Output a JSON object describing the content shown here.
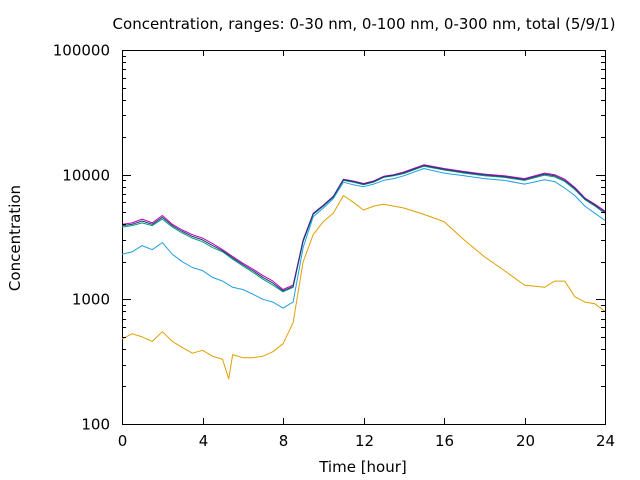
{
  "chart_data": {
    "type": "line",
    "title": "Concentration, ranges: 0-30 nm, 0-100 nm, 0-300 nm, total (5/9/1)",
    "xlabel": "Time [hour]",
    "ylabel": "Concentration",
    "xlim": [
      0,
      24
    ],
    "ylim": [
      100,
      100000
    ],
    "yscale": "log",
    "grid": false,
    "legend": "none",
    "x_ticks": [
      0,
      4,
      8,
      12,
      16,
      20,
      24
    ],
    "y_ticks": [
      100,
      1000,
      10000,
      100000
    ],
    "x_tick_labels": [
      "0",
      "4",
      "8",
      "12",
      "16",
      "20",
      "24"
    ],
    "y_tick_labels": [
      "100",
      "1000",
      "10000",
      "100000"
    ],
    "series": [
      {
        "color": "#e0a000",
        "x": [
          0,
          0.5,
          1,
          1.5,
          2,
          2.5,
          3,
          3.5,
          4,
          4.5,
          5,
          5.3,
          5.5,
          6,
          6.5,
          7,
          7.5,
          8,
          8.5,
          9,
          9.5,
          10,
          10.5,
          11,
          11.5,
          12,
          12.5,
          13,
          13.5,
          14,
          15,
          16,
          17,
          18,
          19,
          20,
          21,
          21.5,
          22,
          22.5,
          23,
          23.5,
          24
        ],
        "y": [
          480,
          530,
          500,
          460,
          550,
          460,
          410,
          370,
          390,
          350,
          330,
          230,
          360,
          340,
          340,
          350,
          380,
          440,
          650,
          2000,
          3300,
          4200,
          4900,
          6800,
          6000,
          5200,
          5600,
          5800,
          5600,
          5400,
          4800,
          4200,
          3000,
          2200,
          1700,
          1300,
          1250,
          1400,
          1400,
          1050,
          950,
          920,
          800
        ]
      },
      {
        "color": "#20a0e0",
        "x": [
          0,
          0.5,
          1,
          1.5,
          2,
          2.5,
          3,
          3.5,
          4,
          4.5,
          5,
          5.5,
          6,
          6.5,
          7,
          7.5,
          8,
          8.5,
          9,
          9.5,
          10,
          10.5,
          11,
          11.5,
          12,
          12.5,
          13,
          13.5,
          14,
          15,
          16,
          17,
          18,
          19,
          20,
          21,
          21.5,
          22,
          22.5,
          23,
          23.5,
          24
        ],
        "y": [
          2300,
          2400,
          2700,
          2500,
          2850,
          2300,
          2000,
          1800,
          1700,
          1500,
          1400,
          1250,
          1200,
          1100,
          1000,
          950,
          850,
          950,
          2600,
          4600,
          5400,
          6400,
          8700,
          8300,
          8000,
          8400,
          9000,
          9300,
          9800,
          11200,
          10300,
          9800,
          9300,
          9000,
          8400,
          9100,
          8800,
          7800,
          6800,
          5600,
          4900,
          4300
        ]
      },
      {
        "color": "#009e73",
        "x": [
          0,
          0.5,
          1,
          1.5,
          2,
          2.5,
          3,
          3.5,
          4,
          4.5,
          5,
          5.5,
          6,
          6.5,
          7,
          7.5,
          8,
          8.5,
          9,
          9.5,
          10,
          10.5,
          11,
          11.5,
          12,
          12.5,
          13,
          13.5,
          14,
          15,
          16,
          17,
          18,
          19,
          20,
          21,
          21.5,
          22,
          22.5,
          23,
          23.5,
          24
        ],
        "y": [
          3800,
          3900,
          4100,
          3900,
          4400,
          3800,
          3400,
          3100,
          2900,
          2600,
          2400,
          2100,
          1850,
          1650,
          1450,
          1300,
          1150,
          1250,
          2900,
          4800,
          5600,
          6600,
          9000,
          8700,
          8300,
          8700,
          9500,
          9800,
          10200,
          11700,
          10900,
          10300,
          9800,
          9500,
          9000,
          9900,
          9600,
          8800,
          7600,
          6300,
          5600,
          4900
        ]
      },
      {
        "color": "#c000c0",
        "x": [
          0,
          0.5,
          1,
          1.5,
          2,
          2.5,
          3,
          3.5,
          4,
          4.5,
          5,
          5.5,
          6,
          6.5,
          7,
          7.5,
          8,
          8.5,
          9,
          9.5,
          10,
          10.5,
          11,
          11.5,
          12,
          12.5,
          13,
          13.5,
          14,
          15,
          16,
          17,
          18,
          19,
          20,
          21,
          21.5,
          22,
          22.5,
          23,
          23.5,
          24
        ],
        "y": [
          4000,
          4100,
          4400,
          4100,
          4700,
          4000,
          3600,
          3300,
          3100,
          2800,
          2500,
          2200,
          1950,
          1750,
          1550,
          1400,
          1200,
          1300,
          3000,
          4900,
          5700,
          6700,
          9200,
          8900,
          8500,
          8900,
          9700,
          10000,
          10500,
          12000,
          11200,
          10600,
          10100,
          9800,
          9300,
          10300,
          10000,
          9200,
          7900,
          6500,
          5800,
          5100
        ]
      },
      {
        "color": "#1f3a7a",
        "x": [
          0,
          0.5,
          1,
          1.5,
          2,
          2.5,
          3,
          3.5,
          4,
          4.5,
          5,
          5.5,
          6,
          6.5,
          7,
          7.5,
          8,
          8.5,
          9,
          9.5,
          10,
          10.5,
          11,
          11.5,
          12,
          12.5,
          13,
          13.5,
          14,
          15,
          16,
          17,
          18,
          19,
          20,
          21,
          21.5,
          22,
          22.5,
          23,
          23.5,
          24
        ],
        "y": [
          3900,
          4000,
          4250,
          4000,
          4550,
          3900,
          3500,
          3200,
          3000,
          2700,
          2450,
          2150,
          1900,
          1700,
          1500,
          1350,
          1170,
          1270,
          2950,
          4850,
          5650,
          6650,
          9100,
          8800,
          8400,
          8800,
          9600,
          9900,
          10350,
          11850,
          11050,
          10450,
          9950,
          9650,
          9150,
          10100,
          9800,
          9000,
          7750,
          6400,
          5700,
          5000
        ]
      }
    ]
  }
}
